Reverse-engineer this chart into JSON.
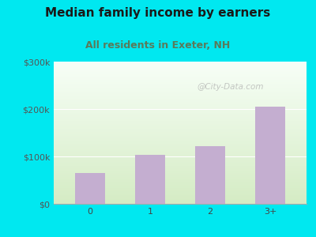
{
  "title": "Median family income by earners",
  "subtitle": "All residents in Exeter, NH",
  "categories": [
    "0",
    "1",
    "2",
    "3+"
  ],
  "values": [
    65000,
    103000,
    122000,
    205000
  ],
  "bar_color": "#c4aed0",
  "title_color": "#1a1a1a",
  "subtitle_color": "#5a7a5a",
  "background_outer": "#00e8f0",
  "background_inner_top": "#f2fdf2",
  "background_inner_bottom": "#d4edc4",
  "ylim": [
    0,
    300000
  ],
  "yticks": [
    0,
    100000,
    200000,
    300000
  ],
  "ytick_labels": [
    "$0",
    "$100k",
    "$200k",
    "$300k"
  ],
  "watermark": "@City-Data.com",
  "title_fontsize": 11,
  "subtitle_fontsize": 9,
  "tick_fontsize": 8
}
